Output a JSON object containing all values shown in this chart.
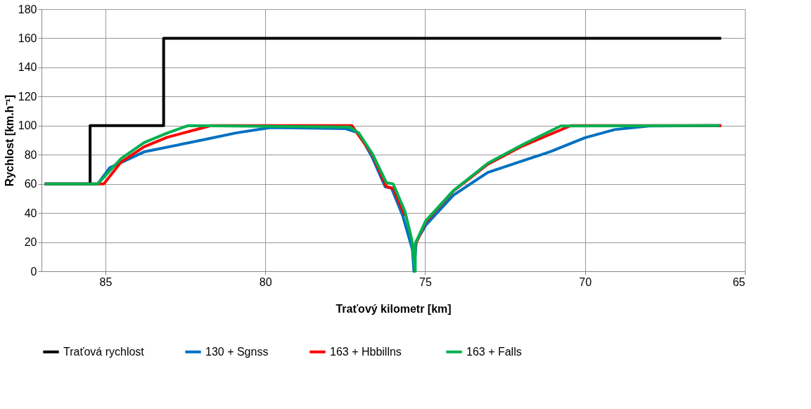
{
  "chart_data": {
    "type": "line",
    "xlabel": "Traťový kilometr [km]",
    "ylabel": "Rychlost [km.h⁻¹]",
    "xlim": [
      87,
      65
    ],
    "xticks": [
      85,
      80,
      75,
      70,
      65
    ],
    "ylim": [
      0,
      180
    ],
    "yticks": [
      0,
      20,
      40,
      60,
      80,
      100,
      120,
      140,
      160,
      180
    ],
    "grid": true,
    "legend": "bottom",
    "marker": "none",
    "line_style": "solid",
    "series": [
      {
        "name": "Traťová rychlost",
        "color": "#000000",
        "x": [
          86.9,
          85.48,
          85.48,
          83.18,
          83.18,
          65.74
        ],
        "values": [
          60,
          60,
          100,
          100,
          160,
          160
        ]
      },
      {
        "name": "130 + Sgnss",
        "color": "#0070c0",
        "x": [
          86.9,
          85.24,
          84.87,
          83.79,
          82.0,
          80.91,
          79.83,
          77.5,
          77.08,
          76.65,
          76.25,
          76.05,
          75.7,
          75.4,
          75.35,
          75.28,
          74.98,
          74.12,
          73.04,
          71.09,
          70.01,
          69.07,
          67.99,
          65.74
        ],
        "values": [
          60,
          60,
          71,
          82,
          90,
          95,
          98.7,
          98,
          95,
          78,
          58,
          57,
          38,
          15,
          0,
          20.5,
          31.6,
          52.2,
          67.9,
          82.1,
          91.6,
          97.3,
          99.8,
          100
        ]
      },
      {
        "name": "163 +  Hbbillns",
        "color": "#ff0000",
        "x": [
          86.9,
          85.05,
          84.51,
          83.79,
          83.07,
          81.7,
          77.29,
          76.65,
          76.21,
          76.0,
          75.63,
          75.38,
          75.33,
          75.31,
          74.98,
          74.12,
          73.04,
          71.96,
          70.44,
          65.74
        ],
        "values": [
          60,
          60,
          75,
          85.5,
          92,
          100,
          100,
          80,
          58,
          57,
          38,
          null,
          0,
          18,
          34,
          55,
          73.5,
          86,
          100,
          100
        ]
      },
      {
        "name": "163 + Falls",
        "color": "#00b050",
        "x": [
          86.9,
          85.24,
          84.51,
          83.79,
          83.07,
          82.42,
          77.36,
          77.08,
          76.65,
          76.21,
          76.0,
          75.63,
          75.42,
          75.31,
          75.31,
          74.98,
          74.12,
          73.04,
          71.96,
          70.76,
          65.79
        ],
        "values": [
          60,
          60,
          77.4,
          88.4,
          94.9,
          100,
          99,
          95,
          80.7,
          60.8,
          60,
          41,
          22,
          0,
          19,
          34.7,
          55.3,
          74.2,
          86.9,
          99.8,
          100
        ]
      }
    ]
  }
}
